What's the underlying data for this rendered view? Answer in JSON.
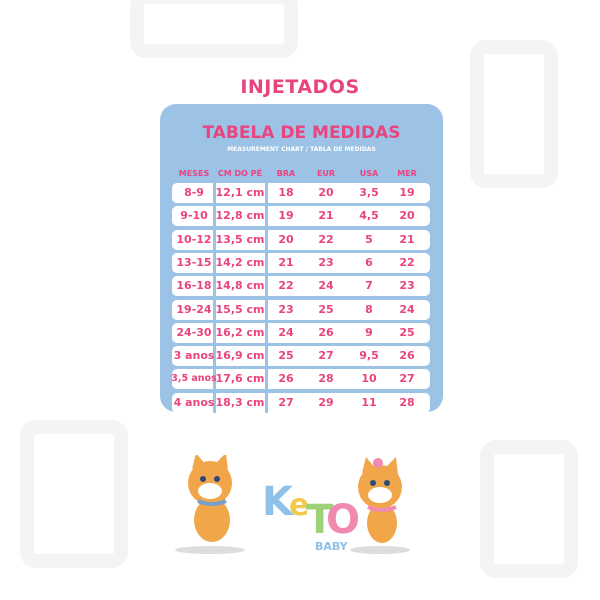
{
  "heading": "INJETADOS",
  "chart": {
    "title": "TABELA DE MEDIDAS",
    "subtitle": "MEASUREMENT CHART / TABLA DE MEDIDAS",
    "headers": [
      "MESES",
      "CM DO PÉ",
      "BRA",
      "EUR",
      "USA",
      "MER"
    ],
    "rows": [
      [
        "8-9",
        "12,1 cm",
        "18",
        "20",
        "3,5",
        "19"
      ],
      [
        "9-10",
        "12,8 cm",
        "19",
        "21",
        "4,5",
        "20"
      ],
      [
        "10-12",
        "13,5 cm",
        "20",
        "22",
        "5",
        "21"
      ],
      [
        "13-15",
        "14,2 cm",
        "21",
        "23",
        "6",
        "22"
      ],
      [
        "16-18",
        "14,8 cm",
        "22",
        "24",
        "7",
        "23"
      ],
      [
        "19-24",
        "15,5 cm",
        "23",
        "25",
        "8",
        "24"
      ],
      [
        "24-30",
        "16,2 cm",
        "24",
        "26",
        "9",
        "25"
      ],
      [
        "3 anos",
        "16,9 cm",
        "25",
        "27",
        "9,5",
        "26"
      ],
      [
        "3,5 anos",
        "17,6 cm",
        "26",
        "28",
        "10",
        "27"
      ],
      [
        "4 anos",
        "18,3 cm",
        "27",
        "29",
        "11",
        "28"
      ]
    ]
  },
  "logo": {
    "brand": "KeTO",
    "sub": "BABY"
  },
  "colors": {
    "pink": "#e8447f",
    "blue": "#9cc3e6"
  }
}
